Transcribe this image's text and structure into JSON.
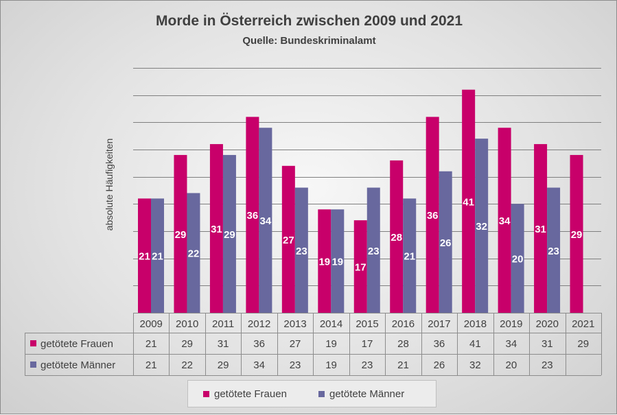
{
  "title": "Morde in Österreich zwischen 2009 und 2021",
  "subtitle": "Quelle: Bundeskriminalamt",
  "chart_data": {
    "type": "bar",
    "title": "Morde in Österreich zwischen 2009 und 2021",
    "subtitle": "Quelle: Bundeskriminalamt",
    "xlabel": "",
    "ylabel": "absolute Häufigkeiten",
    "categories": [
      "2009",
      "2010",
      "2011",
      "2012",
      "2013",
      "2014",
      "2015",
      "2016",
      "2017",
      "2018",
      "2019",
      "2020",
      "2021"
    ],
    "ylim": [
      0,
      45
    ],
    "grid": true,
    "legend_position": "bottom",
    "data_table": true,
    "series": [
      {
        "name": "getötete Frauen",
        "color": "#c8006a",
        "values": [
          21,
          29,
          31,
          36,
          27,
          19,
          17,
          28,
          36,
          41,
          34,
          31,
          29
        ]
      },
      {
        "name": "getötete Männer",
        "color": "#68689e",
        "values": [
          21,
          22,
          29,
          34,
          23,
          19,
          23,
          21,
          26,
          32,
          20,
          23,
          null
        ]
      }
    ]
  }
}
